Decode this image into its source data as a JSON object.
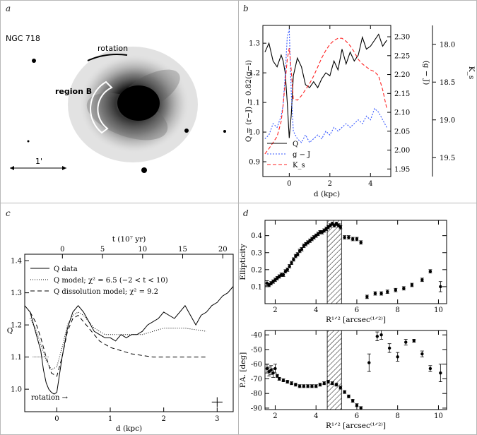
{
  "panel_labels": {
    "a": "a",
    "b": "b",
    "c": "c",
    "d": "d"
  },
  "image_panel": {
    "galaxy_label": "NGC 718",
    "rotation_label": "rotation",
    "region_label": "region B",
    "scale_label": "1'"
  },
  "chart_data": [
    {
      "id": "b",
      "type": "line",
      "xlabel": "d (kpc)",
      "ylabel_left": "Q = (r−J) − 0.82(g−i)",
      "ylabel_right1": "(g − J)",
      "ylabel_right2": "K_s",
      "xlim": [
        -1.3,
        5.0
      ],
      "ylim_left": [
        0.85,
        1.36
      ],
      "ylim_right1": [
        1.93,
        2.33
      ],
      "ylim_right2": [
        19.75,
        17.75
      ],
      "xticks": [
        0,
        2,
        4
      ],
      "yticks_left": [
        0.9,
        1.0,
        1.1,
        1.2,
        1.3
      ],
      "yticks_right1": [
        1.95,
        2.0,
        2.05,
        2.1,
        2.15,
        2.2,
        2.25,
        2.3
      ],
      "yticks_right2": [
        18.0,
        18.5,
        19.0,
        19.5
      ],
      "legend": [
        "Q",
        "g − J",
        "K_s"
      ],
      "series": [
        {
          "name": "Q",
          "axis": "left",
          "color": "#000000",
          "dash": "",
          "x": [
            -1.2,
            -1.0,
            -0.8,
            -0.6,
            -0.4,
            -0.3,
            -0.2,
            -0.1,
            0.0,
            0.1,
            0.2,
            0.4,
            0.6,
            0.8,
            1.0,
            1.2,
            1.4,
            1.6,
            1.8,
            2.0,
            2.2,
            2.4,
            2.6,
            2.8,
            3.0,
            3.2,
            3.4,
            3.6,
            3.8,
            4.0,
            4.2,
            4.4,
            4.6,
            4.8
          ],
          "y": [
            1.27,
            1.3,
            1.24,
            1.22,
            1.26,
            1.24,
            1.2,
            1.1,
            0.98,
            1.06,
            1.19,
            1.25,
            1.22,
            1.16,
            1.15,
            1.17,
            1.15,
            1.18,
            1.2,
            1.19,
            1.24,
            1.21,
            1.28,
            1.23,
            1.27,
            1.24,
            1.26,
            1.32,
            1.28,
            1.29,
            1.31,
            1.33,
            1.29,
            1.31
          ]
        },
        {
          "name": "g − J",
          "axis": "right1",
          "color": "#3355ff",
          "dash": "2,2",
          "x": [
            -1.2,
            -1.0,
            -0.8,
            -0.6,
            -0.4,
            -0.3,
            -0.2,
            -0.1,
            0.0,
            0.1,
            0.2,
            0.4,
            0.6,
            0.8,
            1.0,
            1.2,
            1.4,
            1.6,
            1.8,
            2.0,
            2.2,
            2.4,
            2.6,
            2.8,
            3.0,
            3.2,
            3.4,
            3.6,
            3.8,
            4.0,
            4.2,
            4.4,
            4.6,
            4.8
          ],
          "y": [
            2.03,
            2.04,
            2.07,
            2.06,
            2.09,
            2.12,
            2.2,
            2.3,
            2.32,
            2.15,
            2.05,
            2.03,
            2.02,
            2.04,
            2.02,
            2.03,
            2.04,
            2.03,
            2.05,
            2.04,
            2.06,
            2.05,
            2.06,
            2.07,
            2.06,
            2.07,
            2.08,
            2.07,
            2.09,
            2.08,
            2.11,
            2.1,
            2.08,
            2.06
          ]
        },
        {
          "name": "K_s",
          "axis": "right2",
          "color": "#ff2222",
          "dash": "5,3",
          "x": [
            -1.2,
            -1.0,
            -0.8,
            -0.6,
            -0.4,
            -0.3,
            -0.2,
            -0.1,
            0.0,
            0.1,
            0.2,
            0.4,
            0.6,
            0.8,
            1.0,
            1.2,
            1.4,
            1.6,
            1.8,
            2.0,
            2.2,
            2.4,
            2.6,
            2.8,
            3.0,
            3.2,
            3.4,
            3.6,
            3.8,
            4.0,
            4.2,
            4.4,
            4.6,
            4.8
          ],
          "y": [
            19.45,
            19.38,
            19.3,
            19.22,
            19.02,
            18.8,
            18.5,
            18.2,
            18.05,
            18.35,
            18.72,
            18.74,
            18.68,
            18.6,
            18.52,
            18.42,
            18.3,
            18.18,
            18.08,
            18.0,
            17.95,
            17.92,
            17.92,
            17.96,
            18.02,
            18.1,
            18.2,
            18.26,
            18.3,
            18.34,
            18.36,
            18.42,
            18.6,
            18.85
          ]
        }
      ]
    },
    {
      "id": "c",
      "type": "line",
      "xlabel": "d (kpc)",
      "xlabel_top": "t (10⁷ yr)",
      "ylabel": "Q",
      "xlim": [
        -0.6,
        3.3
      ],
      "ylim": [
        0.93,
        1.42
      ],
      "xticks": [
        0,
        1,
        2,
        3
      ],
      "xticks_top": [
        0,
        5,
        10,
        15,
        20
      ],
      "yticks": [
        1.0,
        1.1,
        1.2,
        1.3,
        1.4
      ],
      "legend": [
        "Q data",
        "Q model; χ² = 6.5 (−2 < t < 10)",
        "Q dissolution model; χ² = 9.2"
      ],
      "annotation": "rotation →",
      "errorbar": {
        "x": 3.0,
        "y": 0.96,
        "xerr": 0.1,
        "yerr": 0.015
      },
      "series": [
        {
          "name": "Q data",
          "color": "#000000",
          "dash": "",
          "x": [
            -0.6,
            -0.5,
            -0.4,
            -0.3,
            -0.25,
            -0.2,
            -0.15,
            -0.1,
            -0.05,
            0.0,
            0.1,
            0.2,
            0.3,
            0.4,
            0.5,
            0.6,
            0.7,
            0.8,
            0.9,
            1.0,
            1.1,
            1.2,
            1.3,
            1.4,
            1.5,
            1.6,
            1.7,
            1.8,
            1.9,
            2.0,
            2.1,
            2.2,
            2.3,
            2.4,
            2.5,
            2.6,
            2.7,
            2.8,
            2.9,
            3.0,
            3.1,
            3.2,
            3.3
          ],
          "y": [
            1.26,
            1.24,
            1.18,
            1.12,
            1.06,
            1.02,
            1.0,
            0.99,
            0.985,
            0.99,
            1.1,
            1.19,
            1.24,
            1.26,
            1.24,
            1.21,
            1.18,
            1.17,
            1.16,
            1.16,
            1.15,
            1.17,
            1.16,
            1.17,
            1.17,
            1.18,
            1.2,
            1.21,
            1.22,
            1.24,
            1.23,
            1.22,
            1.24,
            1.26,
            1.23,
            1.2,
            1.23,
            1.24,
            1.26,
            1.27,
            1.29,
            1.3,
            1.32
          ]
        },
        {
          "name": "Q model",
          "color": "#000000",
          "dash": "1,2",
          "x": [
            -0.5,
            -0.4,
            -0.3,
            -0.2,
            -0.1,
            0.0,
            0.1,
            0.2,
            0.3,
            0.4,
            0.5,
            0.6,
            0.7,
            0.8,
            0.9,
            1.0,
            1.2,
            1.4,
            1.6,
            1.8,
            2.0,
            2.2,
            2.4,
            2.6,
            2.8
          ],
          "y": [
            1.22,
            1.19,
            1.14,
            1.09,
            1.06,
            1.07,
            1.13,
            1.2,
            1.23,
            1.24,
            1.23,
            1.21,
            1.19,
            1.18,
            1.17,
            1.17,
            1.17,
            1.17,
            1.17,
            1.18,
            1.19,
            1.19,
            1.19,
            1.185,
            1.18
          ]
        },
        {
          "name": "Q dissolution model",
          "color": "#000000",
          "dash": "6,4",
          "x": [
            -0.5,
            -0.4,
            -0.3,
            -0.2,
            -0.1,
            0.0,
            0.1,
            0.2,
            0.3,
            0.4,
            0.5,
            0.6,
            0.7,
            0.8,
            0.9,
            1.0,
            1.2,
            1.4,
            1.6,
            1.8,
            2.0,
            2.2,
            2.4,
            2.6,
            2.8
          ],
          "y": [
            1.24,
            1.21,
            1.16,
            1.1,
            1.05,
            1.04,
            1.1,
            1.18,
            1.22,
            1.23,
            1.21,
            1.19,
            1.17,
            1.15,
            1.14,
            1.13,
            1.12,
            1.11,
            1.105,
            1.1,
            1.1,
            1.1,
            1.1,
            1.1,
            1.1
          ]
        }
      ]
    },
    {
      "id": "d-top",
      "type": "scatter",
      "xlabel": "R¹ᐟ² [arcsec⁽¹ᐟ²⁾]",
      "ylabel": "Ellipticity",
      "xlim": [
        1.5,
        10.4
      ],
      "ylim": [
        0.0,
        0.49
      ],
      "xticks": [
        2,
        4,
        6,
        8,
        10
      ],
      "yticks": [
        0.1,
        0.2,
        0.3,
        0.4
      ],
      "hatched_band": [
        4.55,
        5.25
      ],
      "x": [
        1.6,
        1.7,
        1.8,
        1.9,
        2.0,
        2.1,
        2.2,
        2.3,
        2.4,
        2.5,
        2.6,
        2.7,
        2.8,
        2.9,
        3.0,
        3.1,
        3.2,
        3.3,
        3.4,
        3.5,
        3.6,
        3.7,
        3.8,
        3.9,
        4.0,
        4.1,
        4.2,
        4.3,
        4.4,
        4.5,
        4.6,
        4.7,
        4.8,
        4.9,
        5.0,
        5.1,
        5.2,
        5.4,
        5.6,
        5.8,
        6.0,
        6.2,
        6.5,
        6.9,
        7.2,
        7.5,
        7.9,
        8.3,
        8.7,
        9.2,
        9.6,
        10.1
      ],
      "y": [
        0.12,
        0.11,
        0.12,
        0.13,
        0.14,
        0.15,
        0.16,
        0.17,
        0.17,
        0.19,
        0.2,
        0.22,
        0.24,
        0.26,
        0.28,
        0.29,
        0.31,
        0.32,
        0.34,
        0.35,
        0.36,
        0.37,
        0.38,
        0.39,
        0.4,
        0.41,
        0.42,
        0.42,
        0.43,
        0.44,
        0.45,
        0.46,
        0.47,
        0.46,
        0.47,
        0.46,
        0.45,
        0.39,
        0.39,
        0.38,
        0.38,
        0.36,
        0.04,
        0.06,
        0.06,
        0.07,
        0.08,
        0.09,
        0.11,
        0.14,
        0.19,
        0.1
      ],
      "yerr": [
        0.015,
        0.01,
        0.01,
        0.01,
        0.01,
        0.01,
        0.01,
        0.01,
        0.01,
        0.01,
        0.01,
        0.01,
        0.01,
        0.01,
        0.01,
        0.01,
        0.01,
        0.01,
        0.01,
        0.01,
        0.01,
        0.01,
        0.01,
        0.01,
        0.01,
        0.01,
        0.01,
        0.01,
        0.01,
        0.01,
        0.01,
        0.01,
        0.01,
        0.01,
        0.01,
        0.01,
        0.01,
        0.01,
        0.01,
        0.01,
        0.01,
        0.01,
        0.01,
        0.01,
        0.01,
        0.01,
        0.01,
        0.01,
        0.01,
        0.01,
        0.01,
        0.03
      ]
    },
    {
      "id": "d-bottom",
      "type": "scatter",
      "xlabel": "R¹ᐟ² [arcsec⁽¹ᐟ²⁾]",
      "ylabel": "P.A. [deg]",
      "xlim": [
        1.5,
        10.4
      ],
      "ylim": [
        -91,
        -37
      ],
      "xticks": [
        2,
        4,
        6,
        8,
        10
      ],
      "yticks": [
        -90,
        -80,
        -70,
        -60,
        -50,
        -40
      ],
      "hatched_band": [
        4.55,
        5.25
      ],
      "x": [
        1.6,
        1.7,
        1.8,
        1.9,
        2.0,
        2.1,
        2.2,
        2.4,
        2.6,
        2.8,
        3.0,
        3.2,
        3.4,
        3.6,
        3.8,
        4.0,
        4.2,
        4.4,
        4.6,
        4.8,
        5.0,
        5.2,
        5.4,
        5.6,
        5.8,
        6.0,
        6.2,
        6.6,
        7.0,
        7.2,
        7.6,
        8.0,
        8.4,
        8.8,
        9.2,
        9.6,
        10.1
      ],
      "y": [
        -63,
        -65,
        -64,
        -66,
        -63,
        -68,
        -70,
        -71,
        -72,
        -73,
        -74,
        -75,
        -75,
        -75,
        -75,
        -75,
        -74,
        -73,
        -72,
        -73,
        -74,
        -76,
        -79,
        -82,
        -85,
        -88,
        -90,
        -59,
        -41,
        -40,
        -49,
        -55,
        -45,
        -44,
        -53,
        -63,
        -66
      ],
      "yerr": [
        3,
        3,
        3,
        3,
        3,
        1,
        1,
        1,
        1,
        1,
        1,
        1,
        1,
        1,
        1,
        1,
        1,
        1,
        1,
        1,
        1,
        1,
        1,
        1,
        1,
        1,
        1,
        6,
        3,
        3,
        3,
        3,
        2,
        1,
        2,
        2,
        6
      ]
    }
  ]
}
